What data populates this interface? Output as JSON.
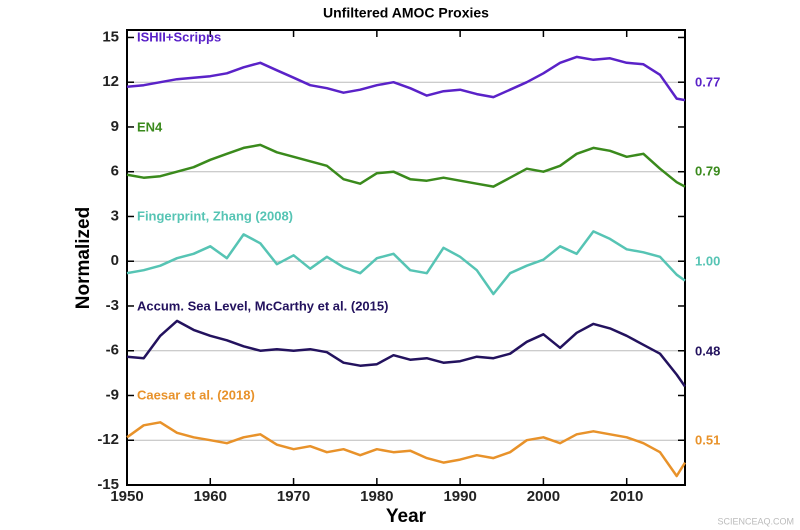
{
  "chart_data": {
    "type": "line",
    "title": "Unfiltered AMOC Proxies",
    "x_label": "Year",
    "y_label": "Normalized",
    "x": [
      1950,
      1952,
      1954,
      1956,
      1958,
      1960,
      1962,
      1964,
      1966,
      1968,
      1970,
      1972,
      1974,
      1976,
      1978,
      1980,
      1982,
      1984,
      1986,
      1988,
      1990,
      1992,
      1994,
      1996,
      1998,
      2000,
      2002,
      2004,
      2006,
      2008,
      2010,
      2012,
      2014,
      2016,
      2017
    ],
    "xlim": [
      1950,
      2017
    ],
    "xticks": [
      1950,
      1960,
      1970,
      1980,
      1990,
      2000,
      2010
    ],
    "ylim": [
      -15,
      15.5
    ],
    "yticks": [
      -15,
      -12,
      -9,
      -6,
      -3,
      0,
      3,
      6,
      9,
      12,
      15
    ],
    "grid_lines": [
      12,
      6,
      0,
      -6,
      -12
    ],
    "series": [
      {
        "name": "ISHII+Scripps",
        "color": "#5a22c8",
        "right_label": "0.77",
        "values": [
          11.7,
          11.8,
          12.0,
          12.2,
          12.3,
          12.4,
          12.6,
          13.0,
          13.3,
          12.8,
          12.3,
          11.8,
          11.6,
          11.3,
          11.5,
          11.8,
          12.0,
          11.6,
          11.1,
          11.4,
          11.5,
          11.2,
          11.0,
          11.5,
          12.0,
          12.6,
          13.3,
          13.7,
          13.5,
          13.6,
          13.3,
          13.2,
          12.5,
          10.9,
          10.8
        ]
      },
      {
        "name": "EN4",
        "color": "#3a8a1c",
        "right_label": "0.79",
        "values": [
          5.8,
          5.6,
          5.7,
          6.0,
          6.3,
          6.8,
          7.2,
          7.6,
          7.8,
          7.3,
          7.0,
          6.7,
          6.4,
          5.5,
          5.2,
          5.9,
          6.0,
          5.5,
          5.4,
          5.6,
          5.4,
          5.2,
          5.0,
          5.6,
          6.2,
          6.0,
          6.4,
          7.2,
          7.6,
          7.4,
          7.0,
          7.2,
          6.2,
          5.3,
          5.0
        ]
      },
      {
        "name": "Fingerprint, Zhang (2008)",
        "color": "#56c4b4",
        "right_label": "1.00",
        "values": [
          -0.8,
          -0.6,
          -0.3,
          0.2,
          0.5,
          1.0,
          0.2,
          1.8,
          1.2,
          -0.2,
          0.4,
          -0.5,
          0.3,
          -0.4,
          -0.8,
          0.2,
          0.5,
          -0.6,
          -0.8,
          0.9,
          0.3,
          -0.6,
          -2.2,
          -0.8,
          -0.3,
          0.1,
          1.0,
          0.5,
          2.0,
          1.5,
          0.8,
          0.6,
          0.3,
          -0.9,
          -1.3
        ]
      },
      {
        "name": "Accum. Sea Level, McCarthy et al. (2015)",
        "color": "#23125e",
        "right_label": "0.48",
        "values": [
          -6.4,
          -6.5,
          -5.0,
          -4.0,
          -4.6,
          -5.0,
          -5.3,
          -5.7,
          -6.0,
          -5.9,
          -6.0,
          -5.9,
          -6.1,
          -6.8,
          -7.0,
          -6.9,
          -6.3,
          -6.6,
          -6.5,
          -6.8,
          -6.7,
          -6.4,
          -6.5,
          -6.2,
          -5.4,
          -4.9,
          -5.8,
          -4.8,
          -4.2,
          -4.5,
          -5.0,
          -5.6,
          -6.2,
          -7.6,
          -8.4
        ]
      },
      {
        "name": "Caesar et al. (2018)",
        "color": "#e8922a",
        "right_label": "0.51",
        "values": [
          -11.8,
          -11.0,
          -10.8,
          -11.5,
          -11.8,
          -12.0,
          -12.2,
          -11.8,
          -11.6,
          -12.3,
          -12.6,
          -12.4,
          -12.8,
          -12.6,
          -13.0,
          -12.6,
          -12.8,
          -12.7,
          -13.2,
          -13.5,
          -13.3,
          -13.0,
          -13.2,
          -12.8,
          -12.0,
          -11.8,
          -12.2,
          -11.6,
          -11.4,
          -11.6,
          -11.8,
          -12.2,
          -12.8,
          -14.4,
          -13.5
        ]
      }
    ],
    "watermark": "SCIENCEAQ.COM"
  }
}
